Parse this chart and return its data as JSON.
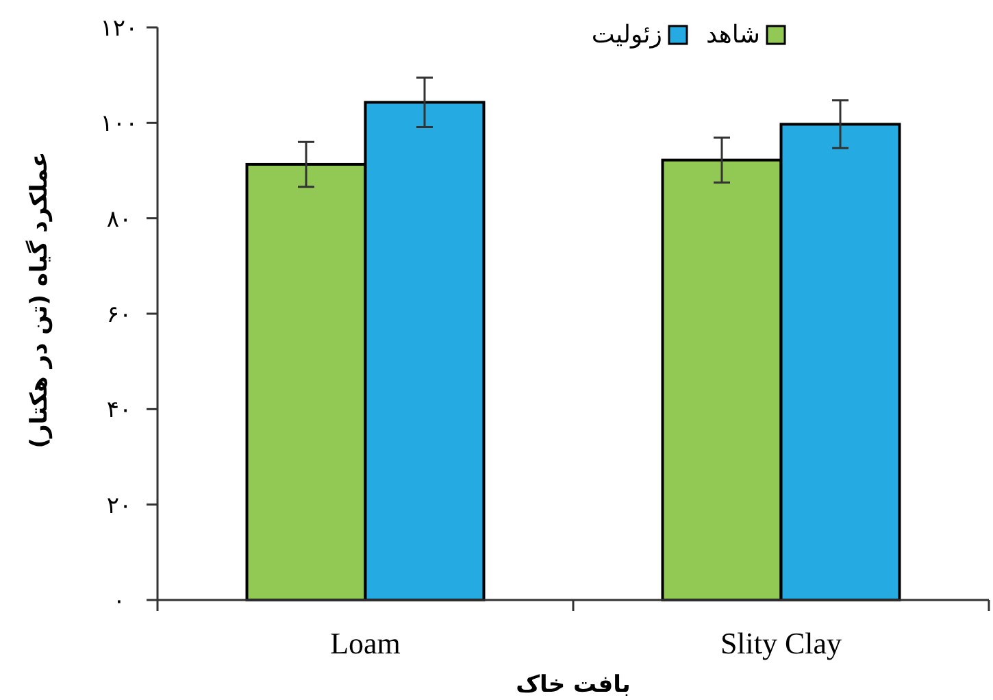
{
  "chart_data": {
    "type": "bar",
    "xlabel": "بافت خاک",
    "ylabel": "عملکرد گیاه (تن در هکتار)",
    "categories": [
      "Loam",
      "Slity Clay"
    ],
    "series": [
      {
        "name": "شاهد",
        "color": "#92c955",
        "values": [
          91.3,
          92.2
        ],
        "errors": [
          4.7,
          4.7
        ]
      },
      {
        "name": "زئولیت",
        "color": "#25aae1",
        "values": [
          104.3,
          99.7
        ],
        "errors": [
          5.2,
          5
        ]
      }
    ],
    "ylim": [
      0,
      120
    ],
    "yticks": [
      {
        "value": 0,
        "label": "۰"
      },
      {
        "value": 20,
        "label": "۲۰"
      },
      {
        "value": 40,
        "label": "۴۰"
      },
      {
        "value": 60,
        "label": "۶۰"
      },
      {
        "value": 80,
        "label": "۸۰"
      },
      {
        "value": 100,
        "label": "۱۰۰"
      },
      {
        "value": 120,
        "label": "۱۲۰"
      }
    ],
    "grid": false,
    "legend": "top right"
  }
}
